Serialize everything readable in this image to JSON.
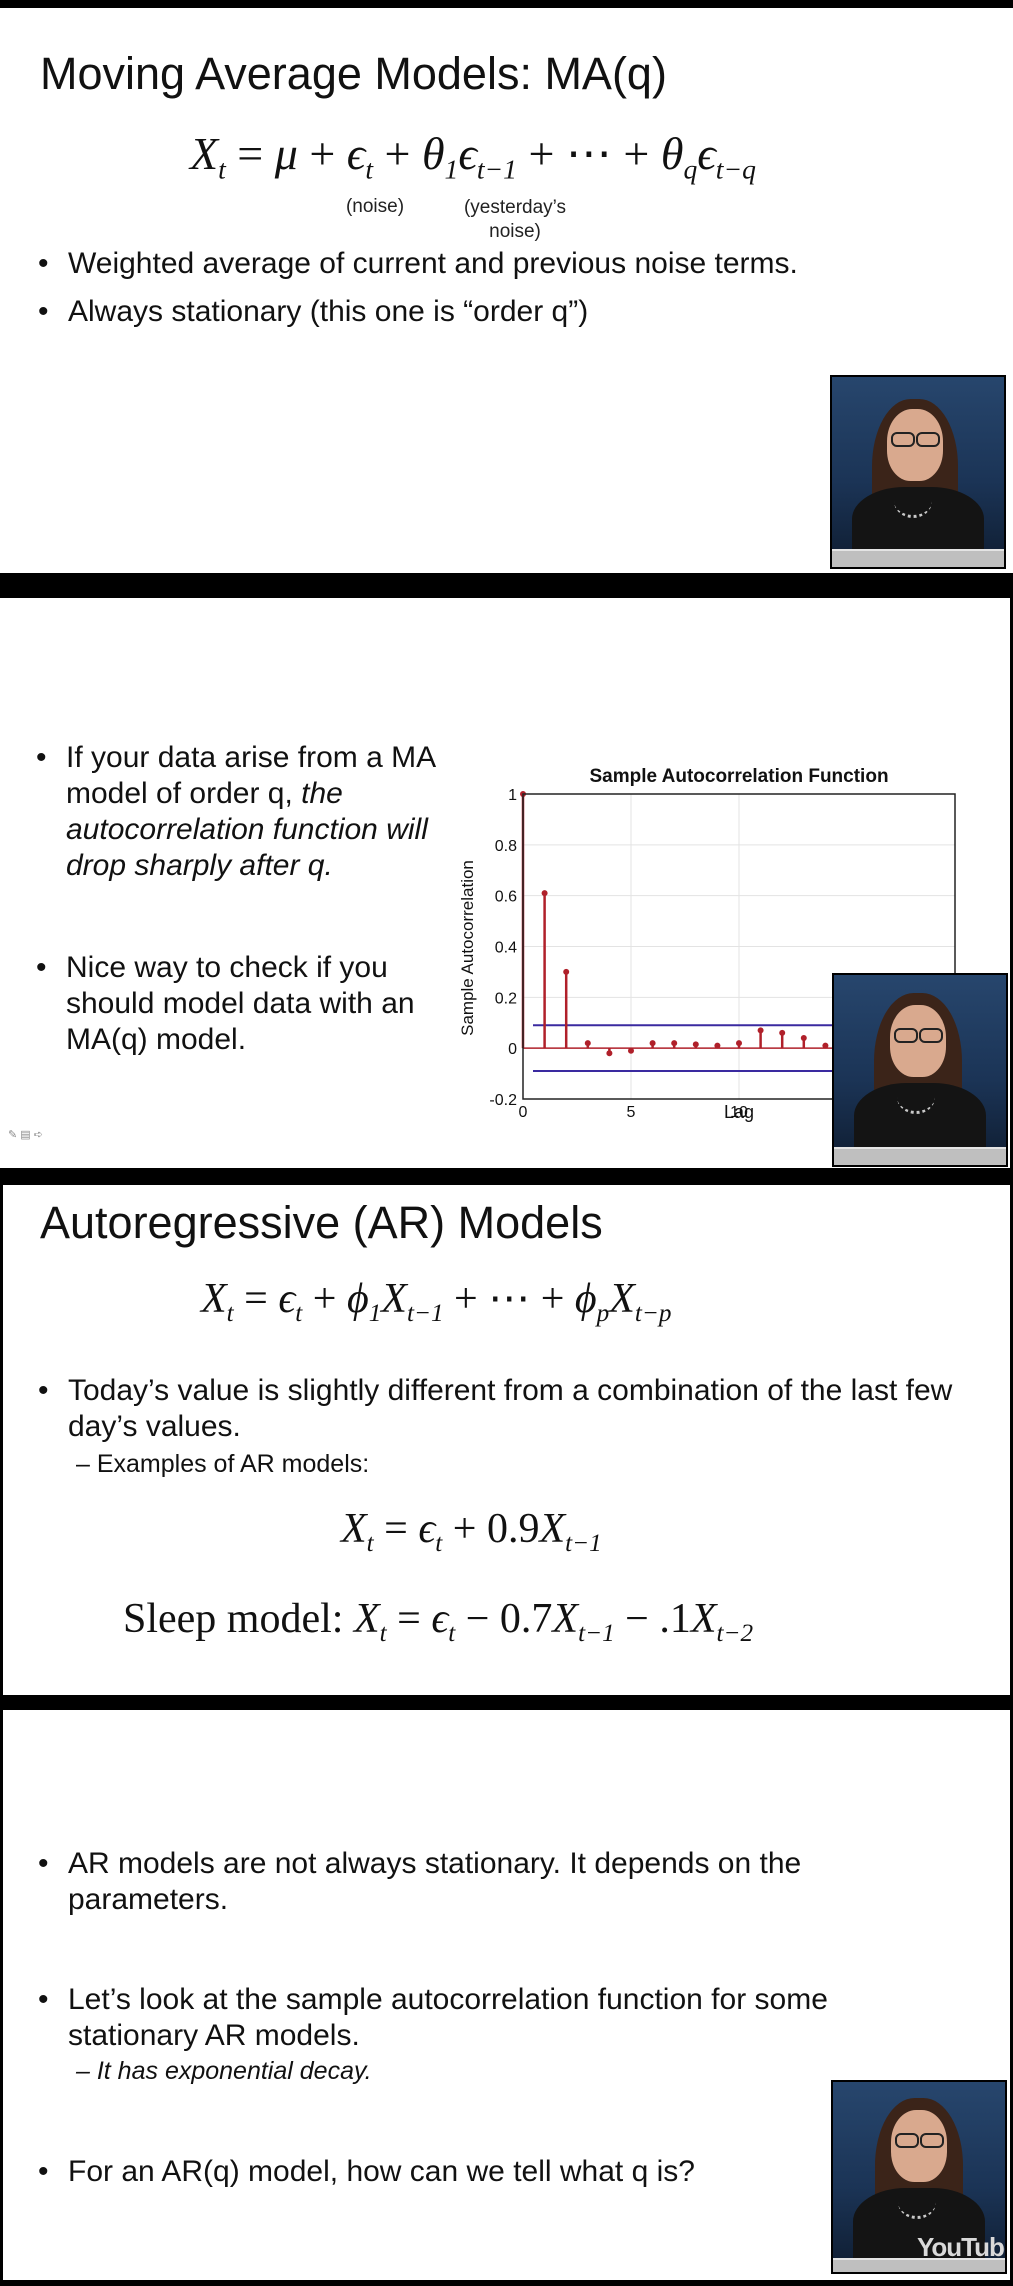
{
  "slide1": {
    "title": "Moving Average Models: MA(q)",
    "equation_lhs": "X",
    "noise_label": "(noise)",
    "yesterday_label_line1": "(yesterday’s",
    "yesterday_label_line2": "noise)",
    "bullets": [
      "Weighted average of current and previous noise terms.",
      "Always stationary (this one is “order q”)"
    ]
  },
  "slide2": {
    "bullet1_plain": "If your data arise from a MA model of order q,",
    "bullet1_italic": "the autocorrelation function will drop sharply after q.",
    "bullet2": "Nice way to check if you should model data with an MA(q) model."
  },
  "chart_data": {
    "type": "stem",
    "title": "Sample Autocorrelation Function",
    "xlabel": "Lag",
    "ylabel": "Sample Autocorrelation",
    "xlim": [
      0,
      20
    ],
    "ylim": [
      -0.2,
      1
    ],
    "xticks": [
      "0",
      "5",
      "10"
    ],
    "yticks": [
      "-0.2",
      "0",
      "0.2",
      "0.4",
      "0.6",
      "0.8",
      "1"
    ],
    "grid": true,
    "x": [
      0,
      1,
      2,
      3,
      4,
      5,
      6,
      7,
      8,
      9,
      10,
      11,
      12,
      13,
      14
    ],
    "y": [
      1.0,
      0.61,
      0.3,
      0.02,
      -0.02,
      -0.01,
      0.02,
      0.02,
      0.015,
      0.01,
      0.02,
      0.07,
      0.06,
      0.04,
      0.01
    ],
    "confidence_bound": 0.09,
    "stem_color": "#b0202a",
    "bound_color": "#3a2aa0"
  },
  "slide3": {
    "title": "Autoregressive (AR) Models",
    "bullet": "Today’s value is slightly different from a combination of the last few day’s values.",
    "sub": "– Examples of AR models:",
    "sleep_label": "Sleep model:"
  },
  "slide4": {
    "bullet1": "AR models are not always stationary. It depends on the parameters.",
    "bullet2": "Let’s look at the sample autocorrelation function for some stationary AR models.",
    "bullet2_sub": "– It has exponential decay.",
    "bullet3": "For an AR(q) model, how can we tell what q is?"
  },
  "video": {
    "watermark": "YouTube",
    "icons": [
      "pen-icon",
      "slides-icon",
      "arrow-icon"
    ]
  },
  "colors": {
    "background": "#000000",
    "slide": "#ffffff",
    "video_bg": "#1b3456"
  }
}
